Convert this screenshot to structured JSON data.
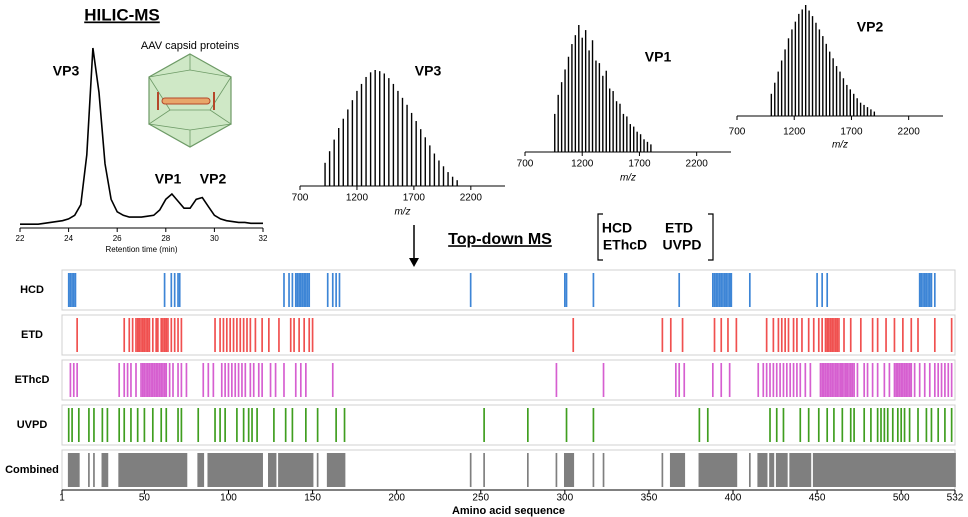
{
  "chart_data": [
    {
      "type": "line",
      "title": "HILIC-MS",
      "xlabel": "Retention time (min)",
      "color": "#000000",
      "annotations": [
        "VP3",
        "VP1",
        "VP2",
        "AAV capsid proteins"
      ],
      "x": [
        22,
        22.25,
        22.5,
        22.75,
        23,
        23.25,
        23.5,
        23.75,
        24,
        24.25,
        24.5,
        24.75,
        25,
        25.25,
        25.5,
        25.75,
        26,
        26.25,
        26.5,
        26.75,
        27,
        27.25,
        27.5,
        27.75,
        28,
        28.25,
        28.5,
        28.75,
        29,
        29.25,
        29.5,
        29.75,
        30,
        30.25,
        30.5,
        30.75,
        31,
        31.25,
        31.5,
        31.75,
        32
      ],
      "values": [
        1,
        1,
        1,
        1,
        1.5,
        2,
        2.5,
        3,
        4,
        6,
        12,
        40,
        100,
        75,
        35,
        15,
        8,
        6,
        5,
        5,
        5,
        5.5,
        6,
        9,
        15,
        18,
        14,
        10,
        10,
        15,
        16,
        11,
        6,
        4,
        3,
        2.5,
        2,
        2,
        1.5,
        1.5,
        1.5
      ],
      "xlim": [
        22,
        32
      ],
      "xticks": [
        22,
        24,
        26,
        28,
        30,
        32
      ],
      "ylim": [
        0,
        100
      ]
    },
    {
      "type": "spectrum",
      "title": "VP3",
      "xlabel": "m/z",
      "color": "#000000",
      "x": [
        920,
        960,
        1000,
        1040,
        1080,
        1120,
        1160,
        1200,
        1240,
        1280,
        1320,
        1360,
        1400,
        1440,
        1480,
        1520,
        1560,
        1600,
        1640,
        1680,
        1720,
        1760,
        1800,
        1840,
        1880,
        1920,
        1960,
        2000,
        2040,
        2080
      ],
      "values": [
        20,
        30,
        40,
        50,
        58,
        66,
        74,
        82,
        88,
        94,
        98,
        100,
        99,
        97,
        93,
        88,
        82,
        76,
        70,
        63,
        56,
        49,
        42,
        35,
        28,
        22,
        17,
        12,
        8,
        5
      ],
      "xlim": [
        700,
        2500
      ],
      "xticks": [
        700,
        1200,
        1700,
        2200
      ],
      "ylim": [
        0,
        100
      ]
    },
    {
      "type": "spectrum",
      "title": "VP1",
      "xlabel": "m/z",
      "color": "#000000",
      "x": [
        960,
        990,
        1020,
        1050,
        1080,
        1110,
        1140,
        1170,
        1200,
        1230,
        1260,
        1290,
        1320,
        1350,
        1380,
        1410,
        1440,
        1470,
        1500,
        1530,
        1560,
        1590,
        1620,
        1650,
        1680,
        1710,
        1740,
        1770,
        1800
      ],
      "values": [
        30,
        45,
        55,
        65,
        75,
        85,
        92,
        100,
        90,
        96,
        80,
        88,
        72,
        70,
        60,
        64,
        50,
        48,
        40,
        38,
        30,
        28,
        22,
        20,
        16,
        14,
        10,
        8,
        6
      ],
      "xlim": [
        700,
        2500
      ],
      "xticks": [
        700,
        1200,
        1700,
        2200
      ],
      "ylim": [
        0,
        100
      ]
    },
    {
      "type": "spectrum",
      "title": "VP2",
      "xlabel": "m/z",
      "color": "#000000",
      "x": [
        1000,
        1030,
        1060,
        1090,
        1120,
        1150,
        1180,
        1210,
        1240,
        1270,
        1300,
        1330,
        1360,
        1390,
        1420,
        1450,
        1480,
        1510,
        1540,
        1570,
        1600,
        1630,
        1660,
        1690,
        1720,
        1750,
        1780,
        1810,
        1840,
        1870,
        1900
      ],
      "values": [
        20,
        30,
        40,
        50,
        60,
        70,
        78,
        85,
        92,
        96,
        100,
        95,
        90,
        84,
        78,
        72,
        65,
        58,
        52,
        45,
        40,
        34,
        28,
        24,
        20,
        16,
        12,
        10,
        8,
        6,
        4
      ],
      "xlim": [
        700,
        2500
      ],
      "xticks": [
        700,
        1200,
        1700,
        2200
      ],
      "ylim": [
        0,
        100
      ]
    },
    {
      "type": "coverage",
      "title": "Top-down MS",
      "xlabel": "Amino acid sequence",
      "xlim": [
        1,
        532
      ],
      "xticks": [
        1,
        50,
        100,
        150,
        200,
        250,
        300,
        350,
        400,
        450,
        500,
        532
      ],
      "series": [
        {
          "name": "HCD",
          "color": "#3d85d6",
          "values": [
            5,
            6,
            7,
            8,
            9,
            62,
            66,
            68,
            70,
            71,
            133,
            136,
            138,
            140,
            141,
            142,
            143,
            144,
            145,
            146,
            147,
            148,
            159,
            162,
            164,
            166,
            244,
            300,
            301,
            317,
            368,
            388,
            389,
            390,
            391,
            392,
            393,
            394,
            395,
            396,
            397,
            398,
            399,
            410,
            450,
            453,
            456,
            511,
            512,
            513,
            514,
            515,
            516,
            517,
            518,
            520
          ]
        },
        {
          "name": "ETD",
          "color": "#f0504f",
          "values": [
            10,
            38,
            41,
            43,
            45,
            46,
            47,
            48,
            49,
            50,
            51,
            52,
            53,
            55,
            57,
            58,
            60,
            61,
            62,
            63,
            64,
            66,
            68,
            70,
            72,
            92,
            95,
            97,
            99,
            101,
            103,
            105,
            107,
            109,
            111,
            113,
            116,
            120,
            124,
            130,
            137,
            139,
            142,
            145,
            148,
            150,
            305,
            358,
            363,
            370,
            389,
            393,
            397,
            402,
            420,
            424,
            427,
            429,
            431,
            433,
            436,
            438,
            441,
            445,
            448,
            451,
            453,
            455,
            456,
            457,
            458,
            459,
            460,
            461,
            462,
            463,
            466,
            470,
            476,
            483,
            486,
            491,
            496,
            501,
            506,
            510,
            520,
            530
          ]
        },
        {
          "name": "EThcD",
          "color": "#d65fd0",
          "values": [
            6,
            8,
            10,
            35,
            38,
            40,
            42,
            45,
            48,
            49,
            50,
            51,
            52,
            53,
            54,
            55,
            56,
            57,
            58,
            59,
            60,
            61,
            62,
            63,
            65,
            67,
            70,
            72,
            75,
            85,
            88,
            91,
            96,
            98,
            100,
            102,
            104,
            106,
            108,
            110,
            113,
            115,
            118,
            120,
            125,
            128,
            133,
            140,
            143,
            146,
            162,
            295,
            323,
            366,
            368,
            371,
            388,
            393,
            398,
            415,
            418,
            420,
            422,
            424,
            426,
            428,
            430,
            432,
            434,
            436,
            438,
            440,
            443,
            446,
            452,
            453,
            454,
            455,
            456,
            457,
            458,
            459,
            460,
            461,
            462,
            463,
            464,
            465,
            466,
            467,
            468,
            469,
            470,
            471,
            472,
            474,
            478,
            480,
            483,
            486,
            490,
            493,
            496,
            497,
            498,
            499,
            500,
            501,
            502,
            503,
            504,
            505,
            506,
            508,
            511,
            514,
            517,
            520,
            522,
            524,
            526,
            528,
            530
          ]
        },
        {
          "name": "UVPD",
          "color": "#3f9e1f",
          "values": [
            5,
            7,
            11,
            17,
            20,
            25,
            28,
            35,
            38,
            42,
            46,
            50,
            55,
            60,
            63,
            70,
            72,
            82,
            92,
            95,
            98,
            105,
            109,
            112,
            114,
            117,
            127,
            134,
            138,
            146,
            153,
            164,
            169,
            252,
            278,
            301,
            317,
            380,
            385,
            422,
            426,
            430,
            440,
            445,
            451,
            456,
            460,
            465,
            470,
            472,
            478,
            482,
            486,
            488,
            490,
            492,
            495,
            498,
            500,
            502,
            505,
            510,
            515,
            518,
            522,
            526,
            530
          ]
        },
        {
          "name": "Combined",
          "color": "#7f7f7f",
          "ranges": [
            [
              5,
              11
            ],
            [
              17,
              17
            ],
            [
              20,
              20
            ],
            [
              25,
              28
            ],
            [
              35,
              75
            ],
            [
              82,
              85
            ],
            [
              88,
              120
            ],
            [
              124,
              128
            ],
            [
              130,
              150
            ],
            [
              153,
              153
            ],
            [
              159,
              169
            ],
            [
              244,
              244
            ],
            [
              252,
              252
            ],
            [
              278,
              278
            ],
            [
              295,
              295
            ],
            [
              300,
              305
            ],
            [
              317,
              317
            ],
            [
              323,
              323
            ],
            [
              358,
              358
            ],
            [
              363,
              371
            ],
            [
              380,
              402
            ],
            [
              410,
              410
            ],
            [
              415,
              420
            ],
            [
              422,
              424
            ],
            [
              426,
              432
            ],
            [
              434,
              446
            ],
            [
              448,
              532
            ]
          ]
        }
      ]
    }
  ]
}
